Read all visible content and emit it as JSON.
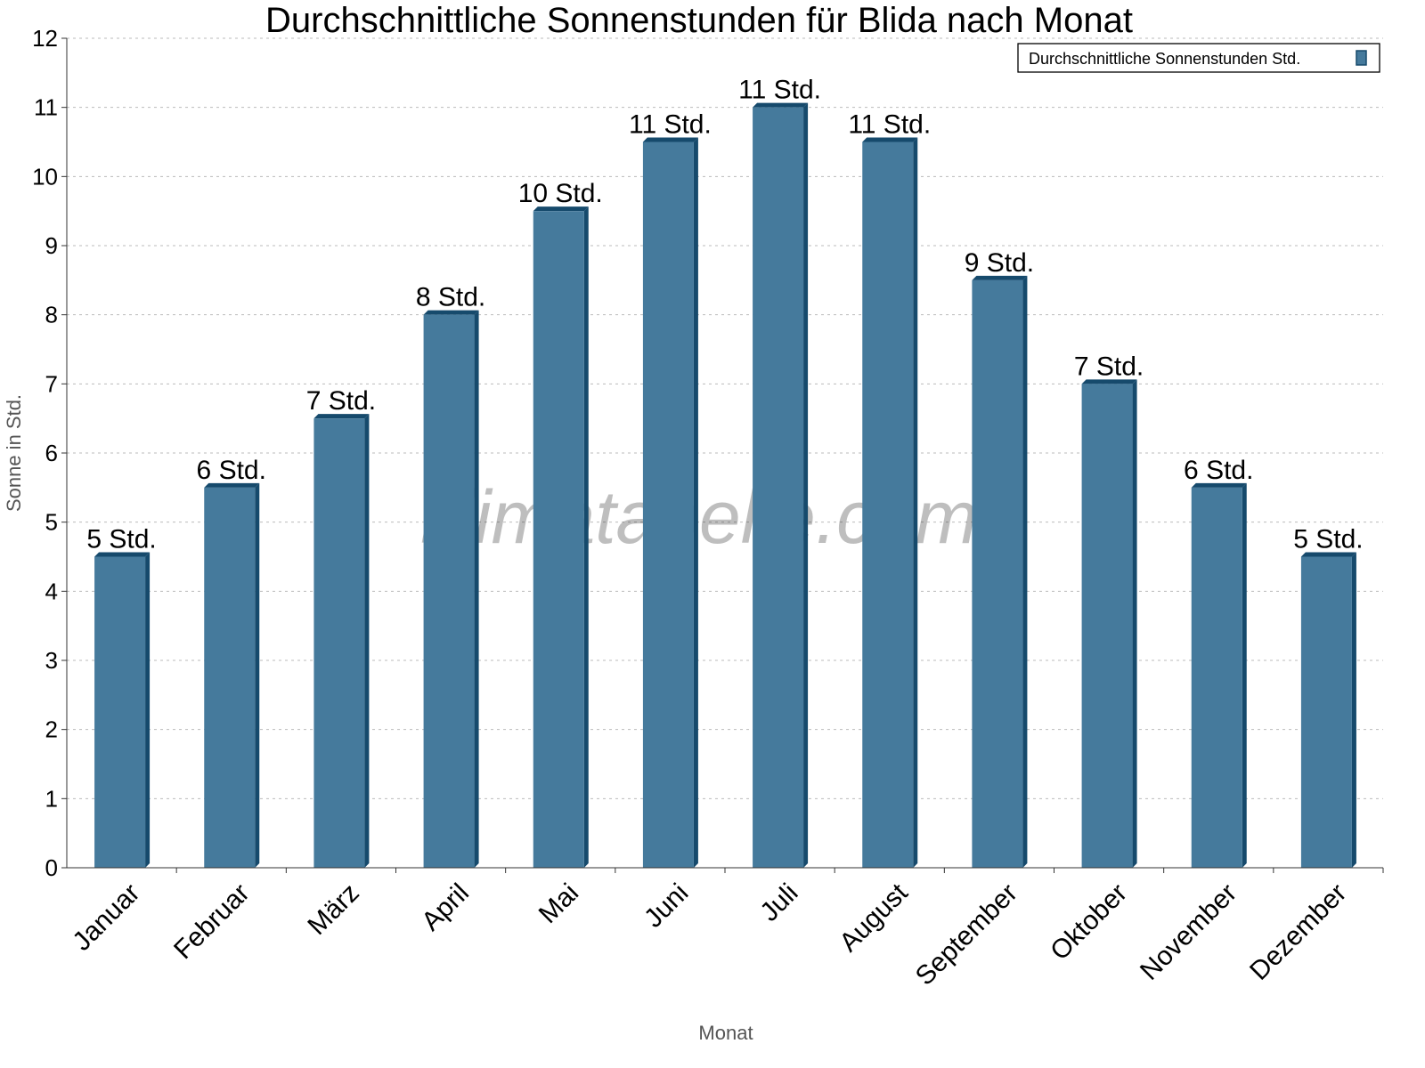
{
  "chart_data": {
    "type": "bar",
    "title": "Durchschnittliche Sonnenstunden für Blida nach Monat",
    "xlabel": "Monat",
    "ylabel": "Sonne in Std.",
    "ylim": [
      0,
      12
    ],
    "yticks": [
      "0",
      "1",
      "2",
      "3",
      "4",
      "5",
      "6",
      "7",
      "8",
      "9",
      "10",
      "11",
      "12"
    ],
    "grid": true,
    "legend_position": "top-right",
    "categories": [
      "Januar",
      "Februar",
      "März",
      "April",
      "Mai",
      "Juni",
      "Juli",
      "August",
      "September",
      "Oktober",
      "November",
      "Dezember"
    ],
    "series": [
      {
        "name": "Durchschnittliche Sonnenstunden Std.",
        "values": [
          4.5,
          5.5,
          6.5,
          8,
          9.5,
          10.5,
          11,
          10.5,
          8.5,
          7,
          5.5,
          4.5
        ],
        "data_labels": [
          "5 Std.",
          "6 Std.",
          "7 Std.",
          "8 Std.",
          "10 Std.",
          "11 Std.",
          "11 Std.",
          "11 Std.",
          "9 Std.",
          "7 Std.",
          "6 Std.",
          "5 Std."
        ]
      }
    ],
    "colors": {
      "bar": "#457a9c",
      "bar_side": "#164a6c"
    }
  },
  "watermark": "klimatabelle.com"
}
